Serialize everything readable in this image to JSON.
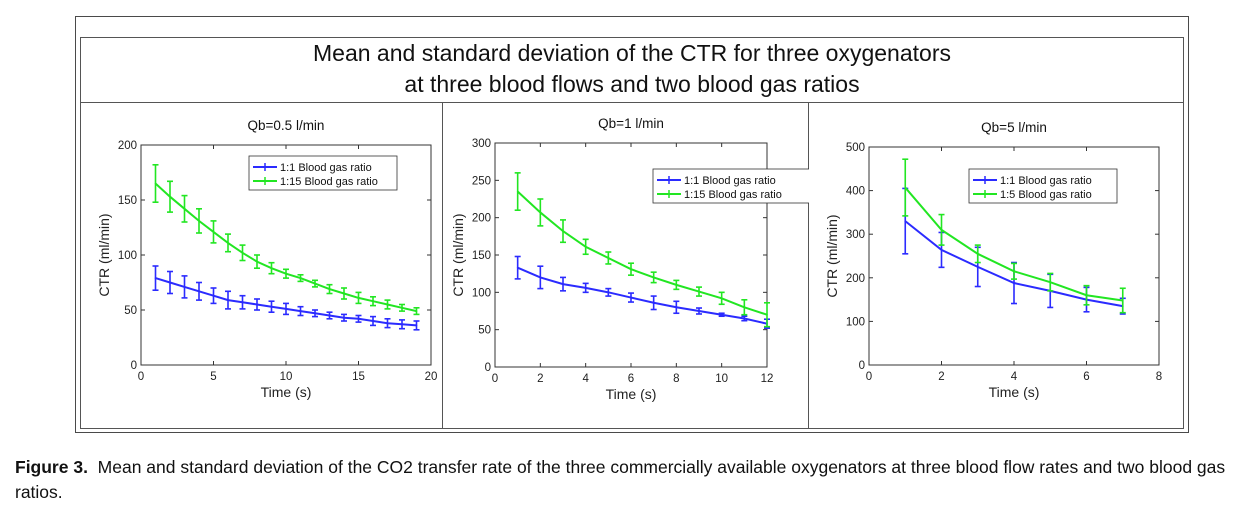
{
  "figure": {
    "title_line1": "Mean and standard deviation of the CTR for three oxygenators",
    "title_line2": "at three blood flows and two blood gas ratios"
  },
  "caption": {
    "label": "Figure 3.",
    "text": "Mean and standard deviation of the CO2 transfer rate of the three commercially available oxygenators at three blood flow rates and two blood gas ratios."
  },
  "colors": {
    "series_blue": "#2b2bff",
    "series_green": "#22e622"
  },
  "chart_data": [
    {
      "type": "line",
      "title": "Qb=0.5 l/min",
      "xlabel": "Time (s)",
      "ylabel": "CTR (ml/min)",
      "xlim": [
        0,
        20
      ],
      "ylim": [
        0,
        200
      ],
      "xticks": [
        0,
        5,
        10,
        15,
        20
      ],
      "yticks": [
        0,
        50,
        100,
        150,
        200
      ],
      "legend_position": "top-right",
      "series": [
        {
          "name": "1:1 Blood gas ratio",
          "color": "#2b2bff",
          "x": [
            1,
            2,
            3,
            4,
            5,
            6,
            7,
            8,
            9,
            10,
            11,
            12,
            13,
            14,
            15,
            16,
            17,
            18,
            19
          ],
          "y": [
            79,
            75,
            71,
            67,
            63,
            59,
            57,
            55,
            53,
            51,
            49,
            47,
            45,
            43,
            42,
            40,
            38,
            37,
            36
          ],
          "err": [
            11,
            10,
            10,
            8,
            7,
            8,
            6,
            5,
            5,
            5,
            4,
            3,
            3,
            3,
            3,
            4,
            4,
            4,
            4
          ]
        },
        {
          "name": "1:15 Blood gas ratio",
          "color": "#22e622",
          "x": [
            1,
            2,
            3,
            4,
            5,
            6,
            7,
            8,
            9,
            10,
            11,
            12,
            13,
            14,
            15,
            16,
            17,
            18,
            19
          ],
          "y": [
            165,
            153,
            142,
            131,
            121,
            111,
            102,
            94,
            88,
            83,
            79,
            74,
            69,
            65,
            61,
            58,
            55,
            52,
            49
          ],
          "err": [
            17,
            14,
            12,
            11,
            10,
            8,
            7,
            6,
            5,
            4,
            3,
            3,
            4,
            5,
            5,
            4,
            4,
            3,
            3
          ]
        }
      ]
    },
    {
      "type": "line",
      "title": "Qb=1 l/min",
      "xlabel": "Time (s)",
      "ylabel": "CTR (ml/min)",
      "xlim": [
        0,
        12
      ],
      "ylim": [
        0,
        300
      ],
      "xticks": [
        0,
        2,
        4,
        6,
        8,
        10,
        12
      ],
      "yticks": [
        0,
        50,
        100,
        150,
        200,
        250,
        300
      ],
      "legend_position": "top-right",
      "series": [
        {
          "name": "1:1 Blood gas ratio",
          "color": "#2b2bff",
          "x": [
            1,
            2,
            3,
            4,
            5,
            6,
            7,
            8,
            9,
            10,
            11,
            12
          ],
          "y": [
            133,
            120,
            111,
            106,
            100,
            93,
            86,
            80,
            75,
            70,
            65,
            58
          ],
          "err": [
            15,
            15,
            9,
            6,
            5,
            6,
            9,
            8,
            4,
            2,
            3,
            6
          ]
        },
        {
          "name": "1:15 Blood gas ratio",
          "color": "#22e622",
          "x": [
            1,
            2,
            3,
            4,
            5,
            6,
            7,
            8,
            9,
            10,
            11,
            12
          ],
          "y": [
            235,
            207,
            182,
            161,
            146,
            131,
            120,
            110,
            101,
            92,
            80,
            70
          ],
          "err": [
            25,
            18,
            15,
            10,
            8,
            8,
            7,
            6,
            6,
            8,
            10,
            16
          ]
        }
      ]
    },
    {
      "type": "line",
      "title": "Qb=5 l/min",
      "xlabel": "Time (s)",
      "ylabel": "CTR (ml/min)",
      "xlim": [
        0,
        8
      ],
      "ylim": [
        0,
        500
      ],
      "xticks": [
        0,
        2,
        4,
        6,
        8
      ],
      "yticks": [
        0,
        100,
        200,
        300,
        400,
        500
      ],
      "legend_position": "top-right",
      "series": [
        {
          "name": "1:1 Blood gas ratio",
          "color": "#2b2bff",
          "x": [
            1,
            2,
            3,
            4,
            5,
            6,
            7
          ],
          "y": [
            330,
            264,
            225,
            188,
            170,
            150,
            135
          ],
          "err": [
            75,
            40,
            45,
            47,
            38,
            28,
            18
          ]
        },
        {
          "name": "1:5 Blood gas ratio",
          "color": "#22e622",
          "x": [
            1,
            2,
            3,
            4,
            5,
            6,
            7
          ],
          "y": [
            407,
            310,
            255,
            215,
            190,
            160,
            148
          ],
          "err": [
            65,
            35,
            20,
            18,
            20,
            22,
            28
          ]
        }
      ]
    }
  ]
}
